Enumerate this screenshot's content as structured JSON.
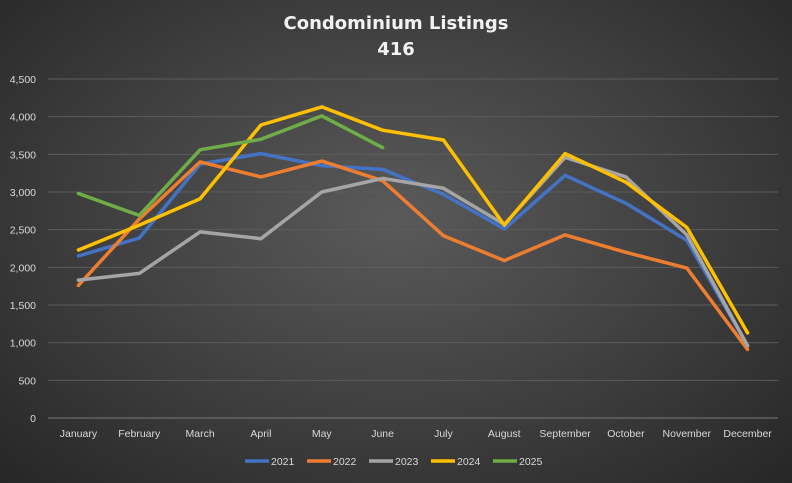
{
  "chart_data": {
    "type": "line",
    "title": "Condominium  Listings",
    "subtitle": "416",
    "xlabel": "",
    "ylabel": "",
    "categories": [
      "January",
      "February",
      "March",
      "April",
      "May",
      "June",
      "July",
      "August",
      "September",
      "October",
      "November",
      "December"
    ],
    "ylim": [
      0,
      4500
    ],
    "ytick_step": 500,
    "ytick_labels": [
      "0",
      "500",
      "1,000",
      "1,500",
      "2,000",
      "2,500",
      "3,000",
      "3,500",
      "4,000",
      "4,500"
    ],
    "grid": true,
    "legend_position": "bottom",
    "series": [
      {
        "name": "2021",
        "color": "#4472c4",
        "values": [
          2150,
          2390,
          3370,
          3510,
          3350,
          3300,
          2970,
          2510,
          3220,
          2850,
          2360,
          960
        ]
      },
      {
        "name": "2022",
        "color": "#ed7d31",
        "values": [
          1760,
          2640,
          3400,
          3200,
          3410,
          3150,
          2420,
          2090,
          2430,
          2200,
          1990,
          910
        ]
      },
      {
        "name": "2023",
        "color": "#a5a5a5",
        "values": [
          1830,
          1920,
          2470,
          2380,
          3000,
          3180,
          3050,
          2570,
          3460,
          3200,
          2430,
          960
        ]
      },
      {
        "name": "2024",
        "color": "#ffc000",
        "values": [
          2230,
          2560,
          2910,
          3890,
          4130,
          3820,
          3690,
          2560,
          3510,
          3130,
          2530,
          1130
        ]
      },
      {
        "name": "2025",
        "color": "#70ad47",
        "values": [
          2980,
          2690,
          3560,
          3700,
          4010,
          3590,
          null,
          null,
          null,
          null,
          null,
          null
        ]
      }
    ]
  }
}
